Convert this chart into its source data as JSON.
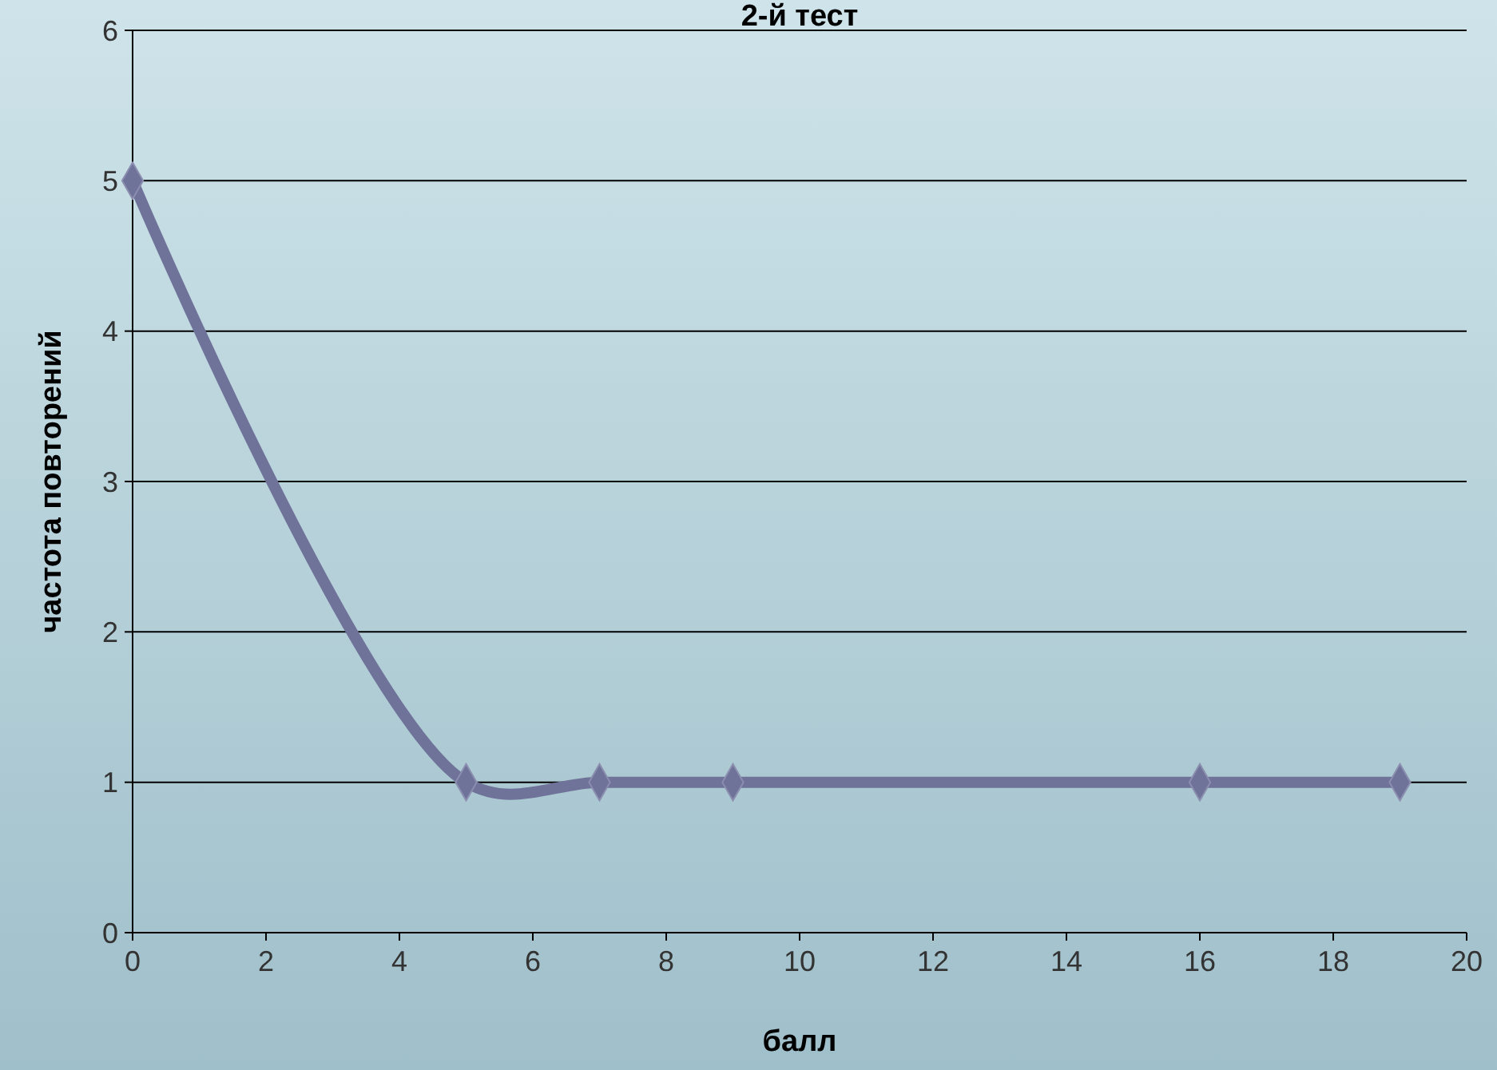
{
  "chart_data": {
    "type": "line",
    "title": "2-й тест",
    "xlabel": "балл",
    "ylabel": "частота повторений",
    "x": [
      0,
      5,
      7,
      9,
      16,
      19
    ],
    "series": [
      {
        "color": "#6f7299",
        "values": [
          5,
          1,
          1,
          1,
          1,
          1
        ]
      }
    ],
    "xlim": [
      0,
      20
    ],
    "xticks": [
      0,
      2,
      4,
      6,
      8,
      10,
      12,
      14,
      16,
      18,
      20
    ],
    "ylim": [
      0,
      6
    ],
    "yticks": [
      0,
      1,
      2,
      3,
      4,
      5,
      6
    ],
    "grid": "y",
    "marker": "diamond",
    "line_style": "solid"
  }
}
